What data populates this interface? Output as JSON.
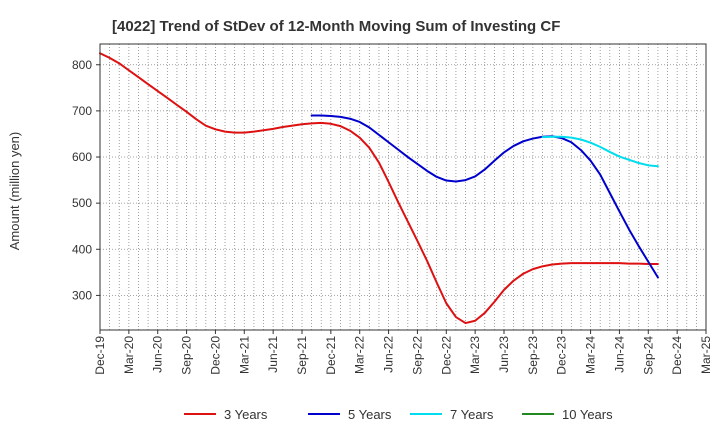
{
  "chart_data": {
    "type": "line",
    "title": "[4022]  Trend of StDev of 12-Month Moving Sum of Investing CF",
    "ylabel": "Amount (million yen)",
    "xlabel": "",
    "ylim": [
      225,
      845
    ],
    "yticks": [
      300,
      400,
      500,
      600,
      700,
      800
    ],
    "x_tick_labels": [
      "Dec-19",
      "Mar-20",
      "Jun-20",
      "Sep-20",
      "Dec-20",
      "Mar-21",
      "Jun-21",
      "Sep-21",
      "Dec-21",
      "Mar-22",
      "Jun-22",
      "Sep-22",
      "Dec-22",
      "Mar-23",
      "Jun-23",
      "Sep-23",
      "Dec-23",
      "Mar-24",
      "Jun-24",
      "Sep-24",
      "Dec-24",
      "Mar-25"
    ],
    "grid": true,
    "legend_position": "bottom",
    "series": [
      {
        "name": "3 Years",
        "color": "#dd1111",
        "points": [
          [
            "Dec-19",
            825
          ],
          [
            "Jan-20",
            815
          ],
          [
            "Feb-20",
            803
          ],
          [
            "Mar-20",
            788
          ],
          [
            "Apr-20",
            773
          ],
          [
            "May-20",
            758
          ],
          [
            "Jun-20",
            743
          ],
          [
            "Jul-20",
            728
          ],
          [
            "Aug-20",
            713
          ],
          [
            "Sep-20",
            698
          ],
          [
            "Oct-20",
            682
          ],
          [
            "Nov-20",
            668
          ],
          [
            "Dec-20",
            660
          ],
          [
            "Jan-21",
            655
          ],
          [
            "Feb-21",
            653
          ],
          [
            "Mar-21",
            653
          ],
          [
            "Apr-21",
            655
          ],
          [
            "May-21",
            658
          ],
          [
            "Jun-21",
            661
          ],
          [
            "Jul-21",
            665
          ],
          [
            "Aug-21",
            668
          ],
          [
            "Sep-21",
            671
          ],
          [
            "Oct-21",
            673
          ],
          [
            "Nov-21",
            674
          ],
          [
            "Dec-21",
            672
          ],
          [
            "Jan-22",
            667
          ],
          [
            "Feb-22",
            657
          ],
          [
            "Mar-22",
            642
          ],
          [
            "Apr-22",
            620
          ],
          [
            "May-22",
            588
          ],
          [
            "Jun-22",
            546
          ],
          [
            "Jul-22",
            502
          ],
          [
            "Aug-22",
            460
          ],
          [
            "Sep-22",
            418
          ],
          [
            "Oct-22",
            375
          ],
          [
            "Nov-22",
            328
          ],
          [
            "Dec-22",
            283
          ],
          [
            "Jan-23",
            253
          ],
          [
            "Feb-23",
            240
          ],
          [
            "Mar-23",
            245
          ],
          [
            "Apr-23",
            262
          ],
          [
            "May-23",
            286
          ],
          [
            "Jun-23",
            312
          ],
          [
            "Jul-23",
            332
          ],
          [
            "Aug-23",
            347
          ],
          [
            "Sep-23",
            357
          ],
          [
            "Oct-23",
            363
          ],
          [
            "Nov-23",
            367
          ],
          [
            "Dec-23",
            369
          ],
          [
            "Jan-24",
            370
          ],
          [
            "Feb-24",
            370
          ],
          [
            "Mar-24",
            370
          ],
          [
            "Apr-24",
            370
          ],
          [
            "May-24",
            370
          ],
          [
            "Jun-24",
            370
          ],
          [
            "Jul-24",
            369
          ],
          [
            "Aug-24",
            369
          ],
          [
            "Sep-24",
            368
          ],
          [
            "Oct-24",
            368
          ]
        ]
      },
      {
        "name": "5 Years",
        "color": "#0000cc",
        "points": [
          [
            "Oct-21",
            690
          ],
          [
            "Nov-21",
            690
          ],
          [
            "Dec-21",
            689
          ],
          [
            "Jan-22",
            687
          ],
          [
            "Feb-22",
            683
          ],
          [
            "Mar-22",
            676
          ],
          [
            "Apr-22",
            664
          ],
          [
            "May-22",
            648
          ],
          [
            "Jun-22",
            632
          ],
          [
            "Jul-22",
            616
          ],
          [
            "Aug-22",
            600
          ],
          [
            "Sep-22",
            585
          ],
          [
            "Oct-22",
            570
          ],
          [
            "Nov-22",
            557
          ],
          [
            "Dec-22",
            549
          ],
          [
            "Jan-23",
            547
          ],
          [
            "Feb-23",
            550
          ],
          [
            "Mar-23",
            558
          ],
          [
            "Apr-23",
            573
          ],
          [
            "May-23",
            592
          ],
          [
            "Jun-23",
            610
          ],
          [
            "Jul-23",
            624
          ],
          [
            "Aug-23",
            634
          ],
          [
            "Sep-23",
            640
          ],
          [
            "Oct-23",
            644
          ],
          [
            "Nov-23",
            645
          ],
          [
            "Dec-23",
            641
          ],
          [
            "Jan-24",
            632
          ],
          [
            "Feb-24",
            615
          ],
          [
            "Mar-24",
            592
          ],
          [
            "Apr-24",
            562
          ],
          [
            "May-24",
            522
          ],
          [
            "Jun-24",
            482
          ],
          [
            "Jul-24",
            443
          ],
          [
            "Aug-24",
            407
          ],
          [
            "Sep-24",
            373
          ],
          [
            "Oct-24",
            339
          ]
        ]
      },
      {
        "name": "7 Years",
        "color": "#00ddee",
        "points": [
          [
            "Oct-23",
            643
          ],
          [
            "Nov-23",
            644
          ],
          [
            "Dec-23",
            644
          ],
          [
            "Jan-24",
            642
          ],
          [
            "Feb-24",
            638
          ],
          [
            "Mar-24",
            631
          ],
          [
            "Apr-24",
            622
          ],
          [
            "May-24",
            611
          ],
          [
            "Jun-24",
            601
          ],
          [
            "Jul-24",
            594
          ],
          [
            "Aug-24",
            587
          ],
          [
            "Sep-24",
            582
          ],
          [
            "Oct-24",
            580
          ]
        ]
      },
      {
        "name": "10 Years",
        "color": "#228822",
        "points": []
      }
    ]
  }
}
